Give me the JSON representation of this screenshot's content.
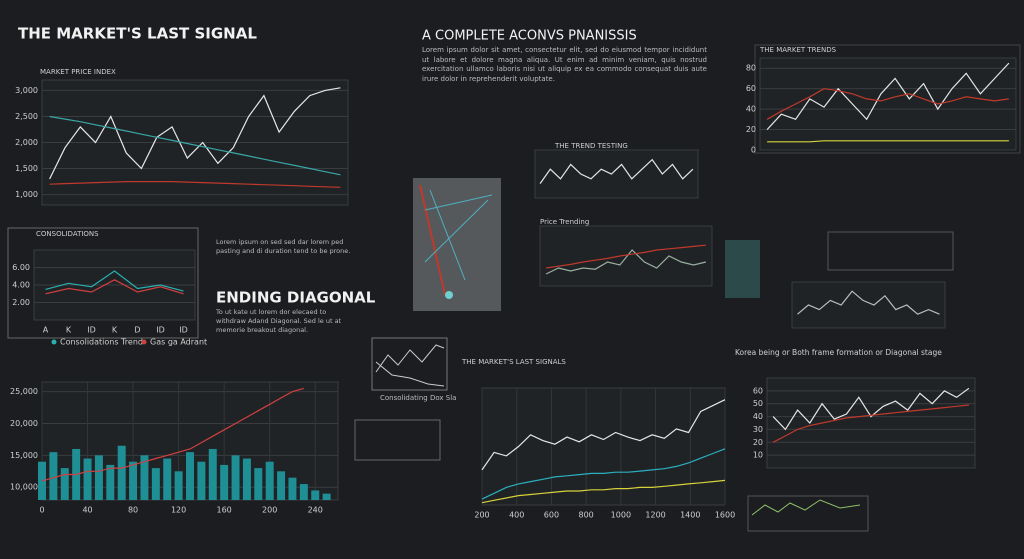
{
  "header": {
    "title": "THE MARKET'S LAST SIGNAL",
    "subtitle": "A COMPLETE ACONVS PNANISSIS",
    "intro": "Lorem ipsum dolor sit amet, consectetur elit, sed do eiusmod tempor incididunt ut labore et dolore magna aliqua. Ut enim ad minim veniam, quis nostrud exercitation ullamco laboris nisi ut aliquip ex ea commodo consequat duis aute irure dolor in reprehenderit voluptate."
  },
  "sections": {
    "ending_title": "ENDING DIAGONAL",
    "ending_text": "To ut kate ut lorem dor elecaed to withdraw Adand Diagonal. Sed le ut at memorie breakout diagonal.",
    "side_text": "Lorem ipsum on sed sed dar lorem ped pasting and di duration tend to be prone.",
    "right_heading": "Korea being or Both frame formation or Diagonal stage",
    "diag_caption": "Consolidating Dox Sla"
  },
  "chart_data": [
    {
      "type": "line",
      "title": "MARKET PRICE INDEX",
      "ylim": [
        800,
        3200
      ],
      "yticks": [
        {
          "value": 1000,
          "label": "1,000"
        },
        {
          "value": 1500,
          "label": "1,500"
        },
        {
          "value": 2000,
          "label": "2,000"
        },
        {
          "value": 2500,
          "label": "2,500"
        },
        {
          "value": 3000,
          "label": "3,000"
        }
      ],
      "grid": true,
      "series": [
        {
          "color": "#e8e8e8",
          "values": [
            1300,
            1900,
            2300,
            2000,
            2500,
            1800,
            1500,
            2100,
            2300,
            1700,
            2000,
            1600,
            1900,
            2500,
            2900,
            2200,
            2600,
            2900,
            3000,
            3050
          ]
        },
        {
          "color": "#3aa6a6",
          "values": [
            2500,
            2450,
            2400,
            2340,
            2280,
            2220,
            2160,
            2100,
            2040,
            1980,
            1920,
            1860,
            1800,
            1740,
            1680,
            1620,
            1560,
            1500,
            1440,
            1380
          ]
        },
        {
          "color": "#c0392b",
          "values": [
            1200,
            1210,
            1220,
            1230,
            1240,
            1250,
            1250,
            1250,
            1250,
            1240,
            1230,
            1220,
            1210,
            1200,
            1190,
            1180,
            1170,
            1160,
            1150,
            1140
          ]
        }
      ]
    },
    {
      "type": "line",
      "title": "CONSOLIDATIONS",
      "ylim": [
        0,
        8
      ],
      "yticks": [
        {
          "value": 2,
          "label": "2.00"
        },
        {
          "value": 4,
          "label": "4.00"
        },
        {
          "value": 6,
          "label": "6.00"
        }
      ],
      "grid": true,
      "categories": [
        "A",
        "K",
        "ID",
        "K",
        "D",
        "ID",
        "ID"
      ],
      "series": [
        {
          "name": "Consolidations Trend",
          "color": "#2ab0b0",
          "values": [
            3.5,
            4.2,
            3.8,
            5.6,
            3.6,
            4.0,
            3.3
          ]
        },
        {
          "name": "Gas ga Adrant",
          "color": "#d04040",
          "values": [
            3.0,
            3.6,
            3.2,
            4.6,
            3.2,
            3.8,
            3.0
          ]
        }
      ]
    },
    {
      "type": "bar",
      "ylim": [
        8000,
        26500
      ],
      "yticks": [
        {
          "value": 10000,
          "label": "10,000"
        },
        {
          "value": 15000,
          "label": "15,000"
        },
        {
          "value": 20000,
          "label": "20,000"
        },
        {
          "value": 25000,
          "label": "25,000"
        }
      ],
      "grid": true,
      "xlim": [
        0,
        260
      ],
      "xticks": [
        0,
        40,
        80,
        120,
        160,
        200,
        240
      ],
      "x": [
        0,
        10,
        20,
        30,
        40,
        50,
        60,
        70,
        80,
        90,
        100,
        110,
        120,
        130,
        140,
        150,
        160,
        170,
        180,
        190,
        200,
        210,
        220,
        230,
        240,
        250
      ],
      "series": [
        {
          "type": "bar",
          "color": "#1f8f96",
          "values": [
            14000,
            15500,
            13000,
            16000,
            14500,
            15000,
            13500,
            16500,
            14000,
            15000,
            13000,
            14500,
            12500,
            15500,
            14000,
            16000,
            13500,
            15000,
            14500,
            13000,
            14000,
            12500,
            11500,
            10500,
            9500,
            9000
          ]
        },
        {
          "type": "line",
          "color": "#d04040",
          "values": [
            11000,
            11500,
            12000,
            12000,
            12500,
            12500,
            13000,
            13000,
            13500,
            14000,
            14500,
            15000,
            15500,
            16000,
            17000,
            18000,
            19000,
            20000,
            21000,
            22000,
            23000,
            24000,
            25000,
            25500,
            null,
            null
          ]
        }
      ]
    },
    {
      "type": "line",
      "title": "THE MARKET'S LAST SIGNALS",
      "ylim": [
        0,
        100
      ],
      "xlim": [
        200,
        1600
      ],
      "xticks": [
        200,
        400,
        600,
        800,
        1000,
        1200,
        1400,
        1600
      ],
      "grid": true,
      "x": [
        200,
        270,
        340,
        410,
        480,
        550,
        620,
        690,
        760,
        830,
        900,
        970,
        1040,
        1110,
        1180,
        1250,
        1320,
        1390,
        1460,
        1530,
        1600
      ],
      "series": [
        {
          "color": "#e6e6e6",
          "values": [
            30,
            45,
            42,
            50,
            60,
            55,
            52,
            58,
            54,
            60,
            56,
            62,
            58,
            55,
            60,
            57,
            65,
            62,
            80,
            85,
            90
          ]
        },
        {
          "color": "#2ab0c0",
          "values": [
            5,
            10,
            15,
            18,
            20,
            22,
            24,
            25,
            26,
            27,
            27,
            28,
            28,
            29,
            30,
            31,
            33,
            36,
            40,
            44,
            48
          ]
        },
        {
          "color": "#d6d23a",
          "values": [
            2,
            4,
            6,
            8,
            9,
            10,
            11,
            12,
            12,
            13,
            13,
            14,
            14,
            15,
            15,
            16,
            17,
            18,
            19,
            20,
            21
          ]
        }
      ]
    },
    {
      "type": "line",
      "title": "THE MARKET TRENDS",
      "ylim": [
        0,
        90
      ],
      "yticks": [
        0,
        20,
        40,
        60,
        80
      ],
      "grid": true,
      "series": [
        {
          "color": "#e6e6e6",
          "values": [
            20,
            35,
            30,
            50,
            42,
            60,
            45,
            30,
            55,
            70,
            50,
            65,
            40,
            60,
            75,
            55,
            70,
            85
          ]
        },
        {
          "color": "#c0392b",
          "values": [
            30,
            38,
            45,
            52,
            60,
            58,
            55,
            50,
            48,
            52,
            55,
            50,
            45,
            48,
            52,
            50,
            48,
            50
          ]
        },
        {
          "color": "#d6d23a",
          "values": [
            8,
            8,
            8,
            8,
            9,
            9,
            9,
            9,
            9,
            9,
            9,
            9,
            9,
            9,
            9,
            9,
            9,
            9
          ]
        }
      ]
    },
    {
      "type": "line",
      "ylim": [
        0,
        70
      ],
      "yticks": [
        10,
        20,
        30,
        40,
        50,
        60
      ],
      "grid": true,
      "series": [
        {
          "color": "#e6e6e6",
          "values": [
            40,
            30,
            45,
            35,
            50,
            38,
            42,
            55,
            40,
            48,
            52,
            45,
            58,
            50,
            60,
            55,
            62
          ]
        },
        {
          "color": "#c0392b",
          "values": [
            20,
            25,
            30,
            33,
            35,
            37,
            39,
            40,
            41,
            42,
            43,
            44,
            45,
            46,
            47,
            48,
            49
          ]
        }
      ]
    },
    {
      "type": "line",
      "title": "THE TREND TESTING",
      "ylim": [
        0,
        10
      ],
      "grid": true,
      "series": [
        {
          "color": "#e6e6e6",
          "values": [
            3,
            6,
            4,
            7,
            5,
            4,
            6,
            5,
            7,
            4,
            6,
            8,
            5,
            7,
            4,
            6
          ]
        }
      ]
    },
    {
      "type": "line",
      "title": "Price Trending",
      "ylim": [
        0,
        10
      ],
      "grid": true,
      "series": [
        {
          "color": "#9ab0a0",
          "values": [
            2,
            3,
            2.5,
            3,
            2.8,
            4,
            3.5,
            6,
            4,
            3,
            5,
            4,
            3.5,
            4
          ]
        },
        {
          "color": "#c0392b",
          "values": [
            3,
            3.3,
            3.6,
            4,
            4.3,
            4.6,
            5,
            5.3,
            5.6,
            6,
            6.2,
            6.4,
            6.6,
            6.8
          ]
        }
      ]
    },
    {
      "type": "line",
      "ylim": [
        0,
        10
      ],
      "grid": true,
      "series": [
        {
          "color": "#bbbbbb",
          "values": [
            3,
            5,
            4,
            6,
            5,
            8,
            6,
            5,
            7,
            4,
            5,
            3,
            4,
            3
          ]
        }
      ]
    }
  ]
}
